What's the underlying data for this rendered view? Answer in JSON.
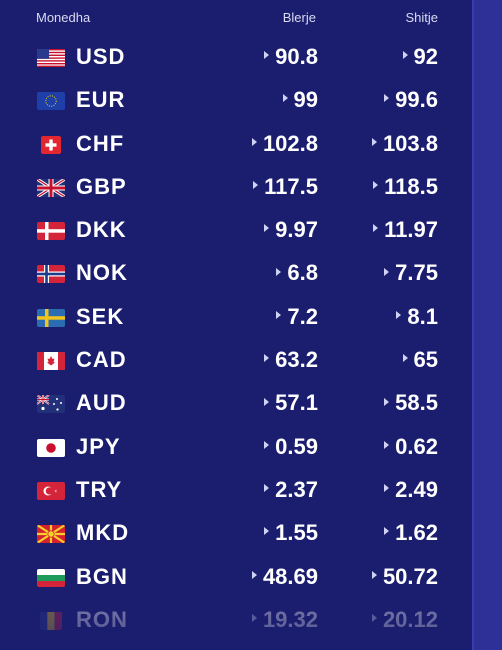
{
  "header": {
    "currency": "Monedha",
    "buy": "Blerje",
    "sell": "Shitje"
  },
  "rates": [
    {
      "code": "USD",
      "buy": "90.8",
      "sell": "92",
      "flag": "us-flag-icon"
    },
    {
      "code": "EUR",
      "buy": "99",
      "sell": "99.6",
      "flag": "eu-flag-icon"
    },
    {
      "code": "CHF",
      "buy": "102.8",
      "sell": "103.8",
      "flag": "ch-flag-icon"
    },
    {
      "code": "GBP",
      "buy": "117.5",
      "sell": "118.5",
      "flag": "gb-flag-icon"
    },
    {
      "code": "DKK",
      "buy": "9.97",
      "sell": "11.97",
      "flag": "dk-flag-icon"
    },
    {
      "code": "NOK",
      "buy": "6.8",
      "sell": "7.75",
      "flag": "no-flag-icon"
    },
    {
      "code": "SEK",
      "buy": "7.2",
      "sell": "8.1",
      "flag": "se-flag-icon"
    },
    {
      "code": "CAD",
      "buy": "63.2",
      "sell": "65",
      "flag": "ca-flag-icon"
    },
    {
      "code": "AUD",
      "buy": "57.1",
      "sell": "58.5",
      "flag": "au-flag-icon"
    },
    {
      "code": "JPY",
      "buy": "0.59",
      "sell": "0.62",
      "flag": "jp-flag-icon"
    },
    {
      "code": "TRY",
      "buy": "2.37",
      "sell": "2.49",
      "flag": "tr-flag-icon"
    },
    {
      "code": "MKD",
      "buy": "1.55",
      "sell": "1.62",
      "flag": "mk-flag-icon"
    },
    {
      "code": "BGN",
      "buy": "48.69",
      "sell": "50.72",
      "flag": "bg-flag-icon"
    },
    {
      "code": "RON",
      "buy": "19.32",
      "sell": "20.12",
      "flag": "ro-flag-icon"
    }
  ],
  "colors": {
    "background": "#1b1d6e",
    "side_strip": "#2e2f97",
    "text": "#ffffff"
  }
}
